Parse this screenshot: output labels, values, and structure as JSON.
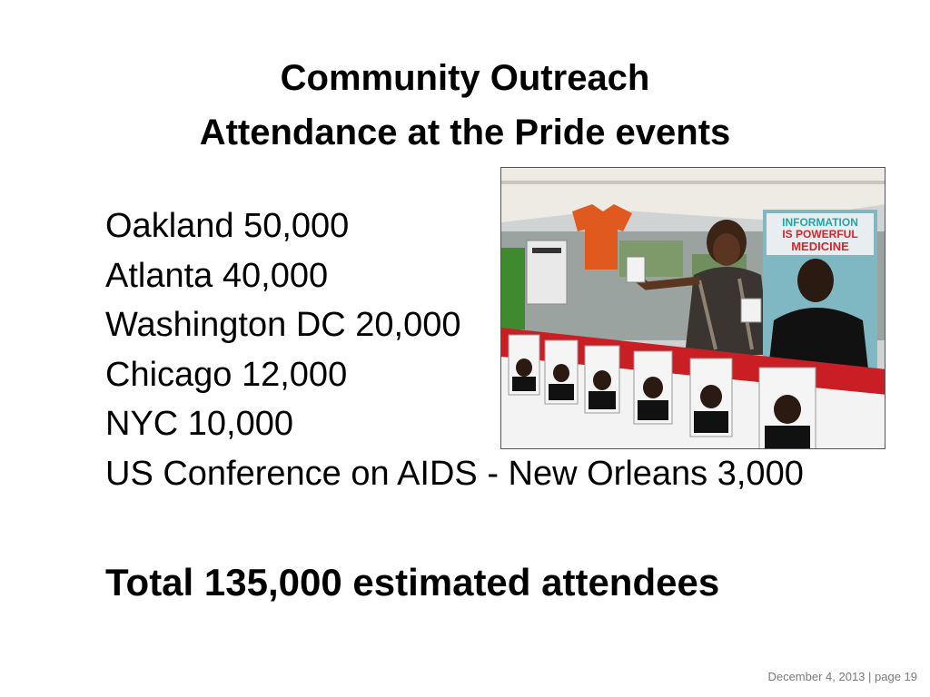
{
  "slide": {
    "title_line1": "Community Outreach",
    "title_line2": "Attendance at the Pride events",
    "events": [
      "Oakland 50,000",
      "Atlanta 40,000",
      "Washington DC 20,000",
      "Chicago 12,000",
      "NYC 10,000",
      "US Conference on AIDS - New Orleans 3,000"
    ],
    "total": "Total 135,000 estimated attendees",
    "footer": "December 4, 2013 | page 19"
  },
  "photo": {
    "poster_line1": "INFORMATION",
    "poster_line2": "IS POWERFUL",
    "poster_line3": "MEDICINE"
  },
  "colors": {
    "poster_red": "#d4262b",
    "poster_teal": "#1fa6a8",
    "booth_red": "#c91f24"
  }
}
